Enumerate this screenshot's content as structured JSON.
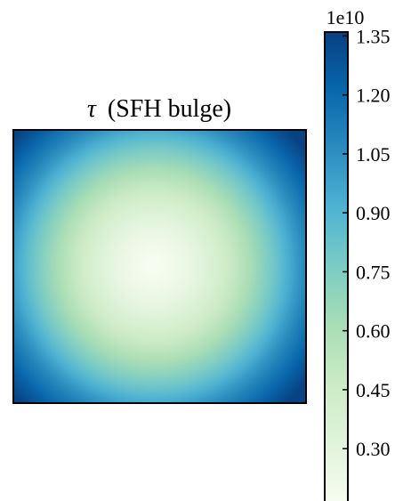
{
  "chart_data": {
    "type": "heatmap",
    "title_symbol": "τ",
    "title_text": "(SFH bulge)",
    "colormap": "GnBu",
    "colormap_stops": [
      "#f7fcf0",
      "#e0f3db",
      "#ccebc5",
      "#a8ddb5",
      "#7bccc4",
      "#4eb3d3",
      "#2b8cbe",
      "#0868ac",
      "#084081"
    ],
    "field": {
      "shape": "radial",
      "center_value": 0.16,
      "edge_midpoint_value": 0.98,
      "corner_value": 1.35,
      "value_scale": "1e10"
    },
    "colorbar": {
      "multiplier_label": "1e10",
      "vmin": 0.16,
      "vmax": 1.36,
      "ticks": [
        0.3,
        0.45,
        0.6,
        0.75,
        0.9,
        1.05,
        1.2,
        1.35
      ],
      "tick_labels": [
        "0.30",
        "0.45",
        "0.60",
        "0.75",
        "0.90",
        "1.05",
        "1.20",
        "1.35"
      ]
    }
  }
}
